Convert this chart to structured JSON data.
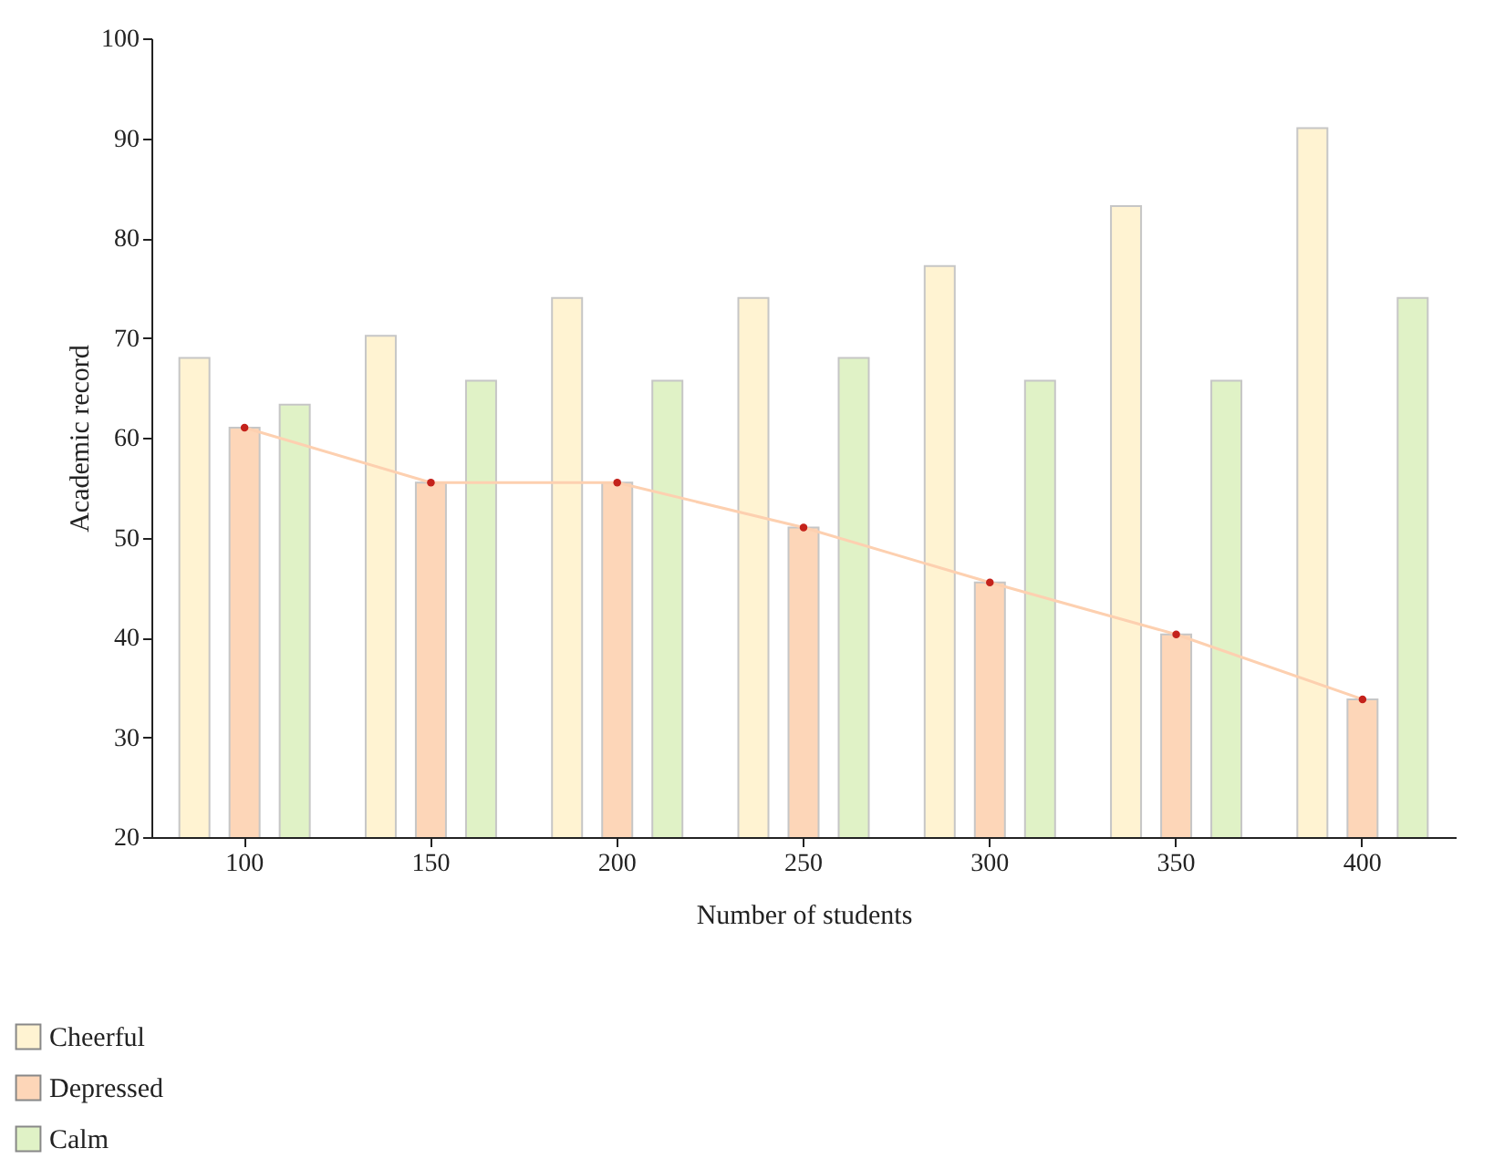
{
  "chart_data": {
    "type": "bar",
    "xlabel": "Number of students",
    "ylabel": "Academic record",
    "categories": [
      "100",
      "150",
      "200",
      "250",
      "300",
      "350",
      "400"
    ],
    "series": [
      {
        "name": "Cheerful",
        "color": "#fff3d2",
        "values": [
          68,
          70.2,
          74,
          74,
          77.2,
          83.2,
          91
        ]
      },
      {
        "name": "Depressed",
        "color": "#fdd6b8",
        "values": [
          61,
          55.5,
          55.5,
          51,
          45.5,
          40.3,
          33.8
        ]
      },
      {
        "name": "Calm",
        "color": "#e0f2c6",
        "values": [
          63.3,
          65.7,
          65.7,
          68,
          65.7,
          65.7,
          74
        ]
      },
      {
        "type": "line",
        "color": "#fdd0b0",
        "marker": "circle",
        "values": [
          61,
          55.5,
          55.5,
          51,
          45.5,
          40.3,
          33.8
        ]
      }
    ],
    "ylim": [
      20,
      100
    ],
    "yticks": [
      20,
      30,
      40,
      50,
      60,
      70,
      80,
      90,
      100
    ],
    "legend": "bottom left",
    "grid": false
  }
}
